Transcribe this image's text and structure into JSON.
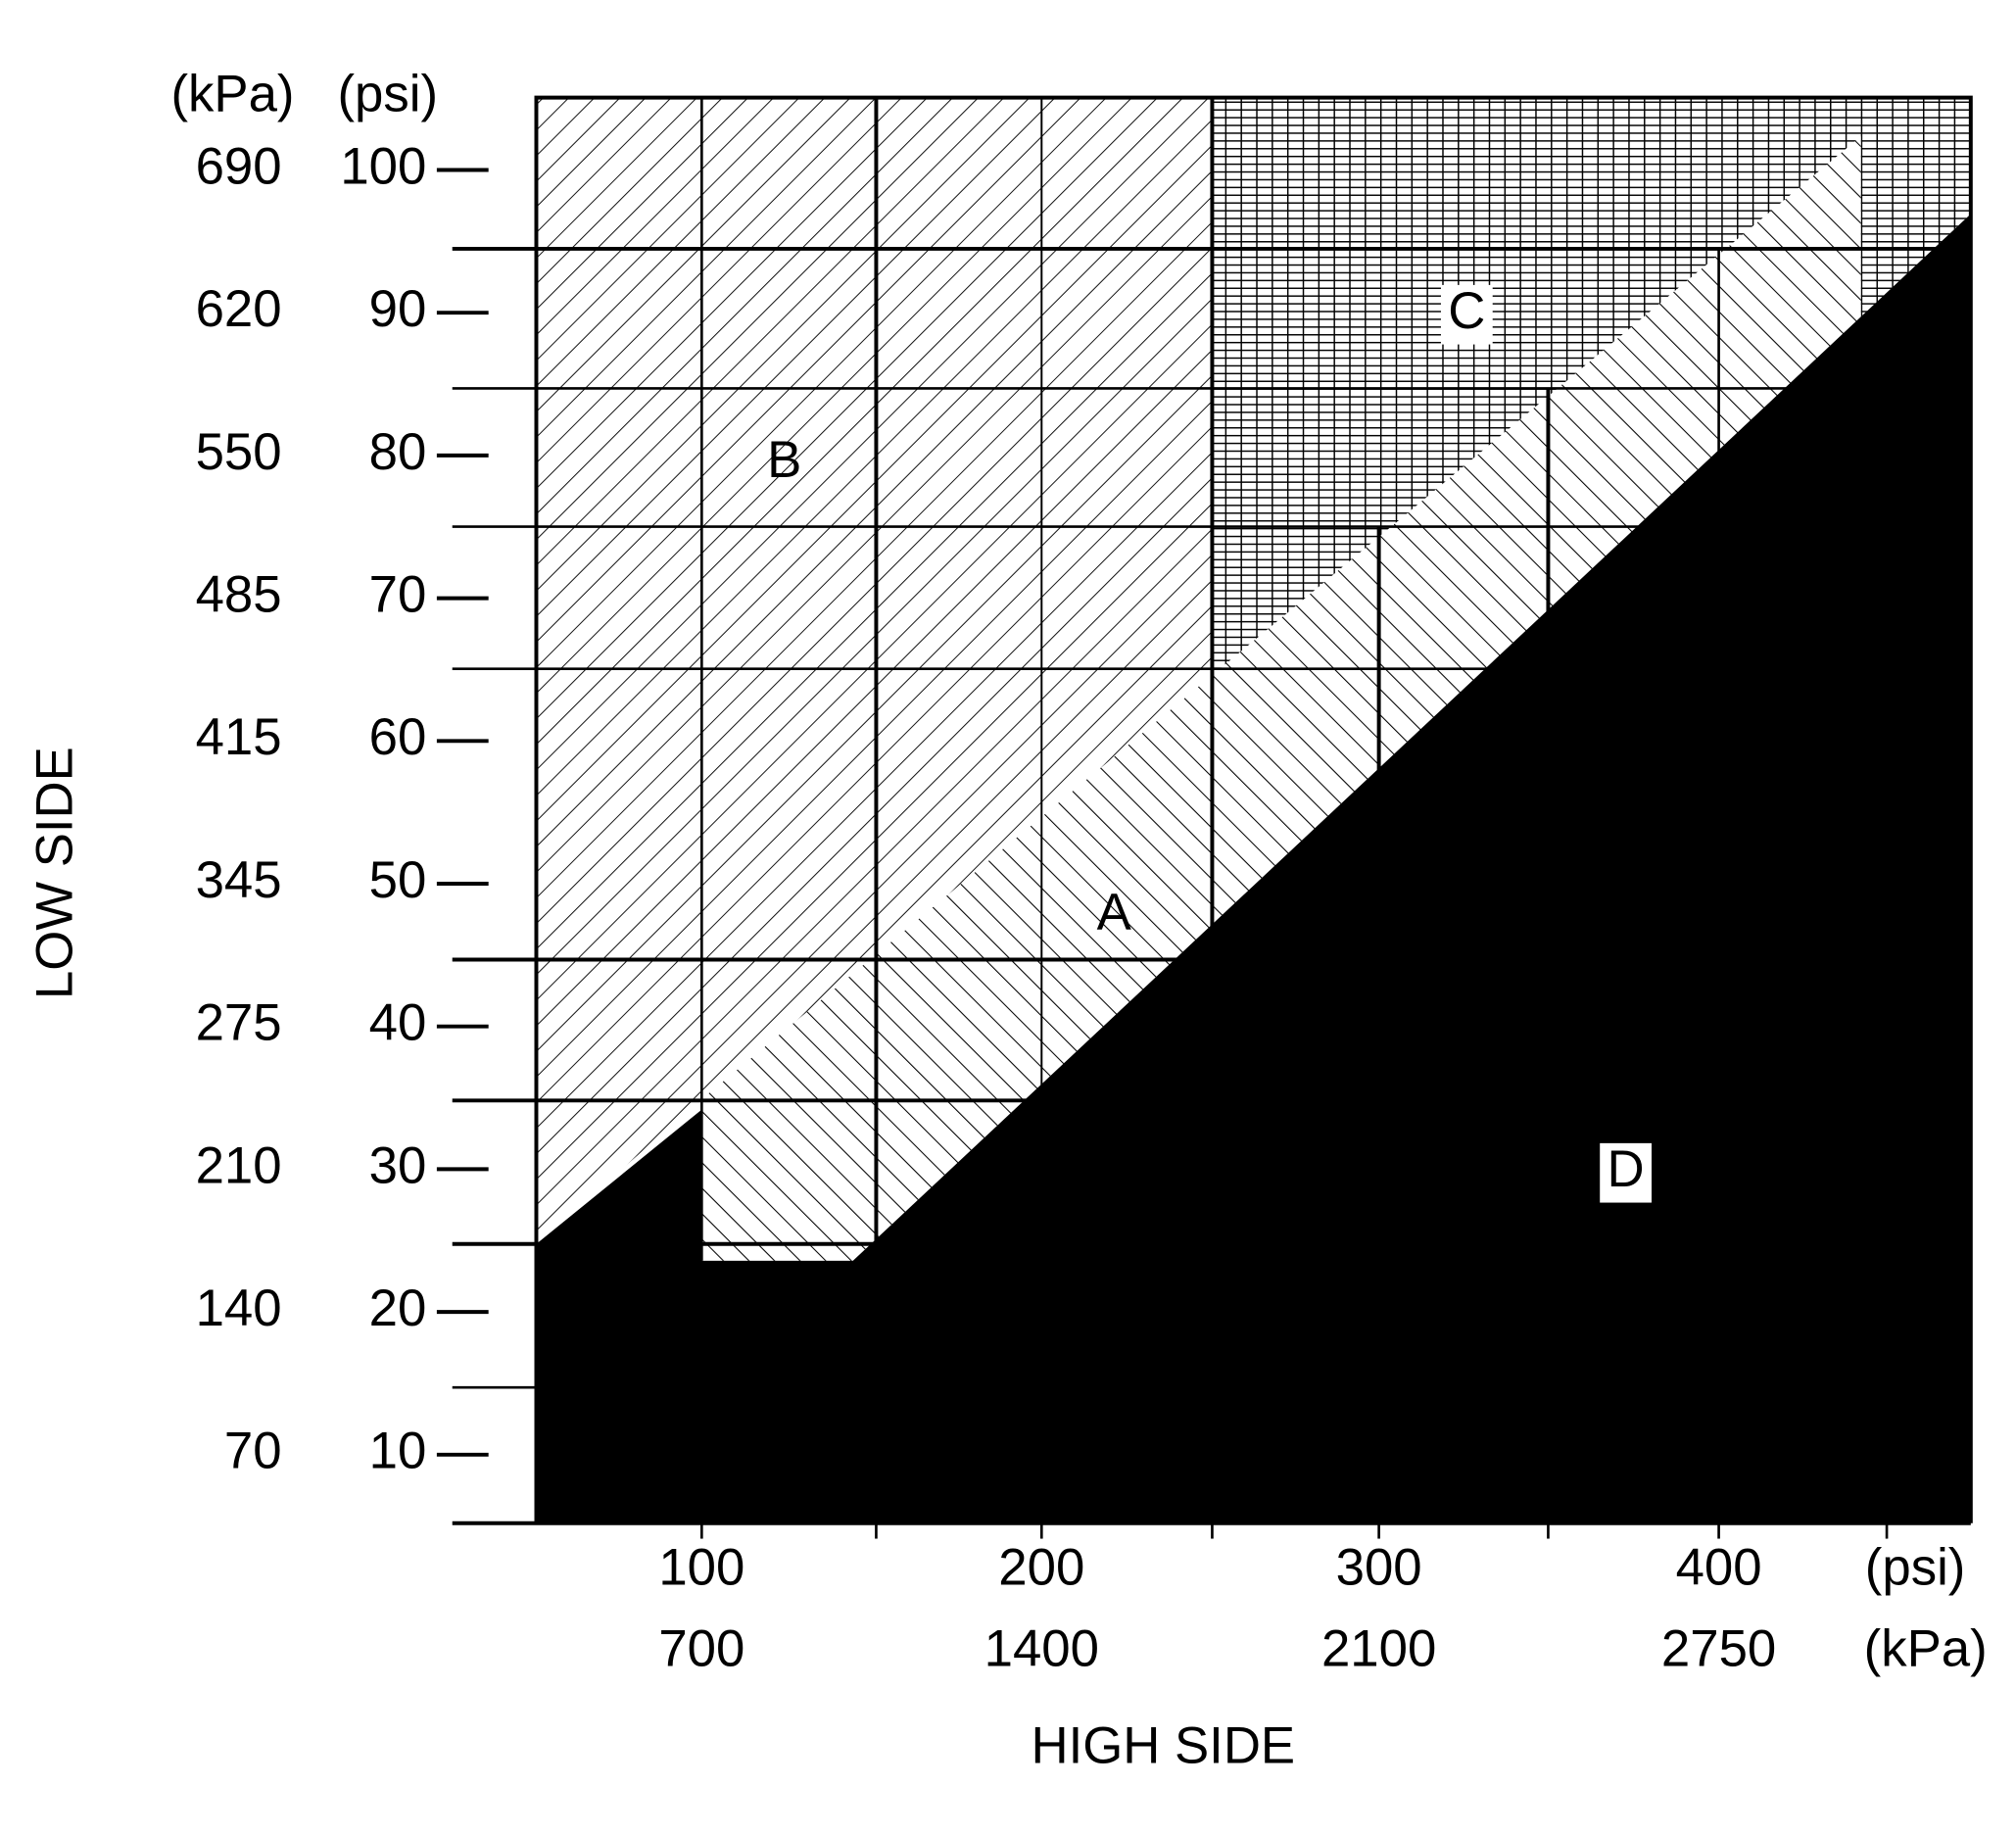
{
  "y_axis": {
    "title": "LOW SIDE",
    "units": [
      "(kPa)",
      "(psi)"
    ],
    "kpa_labels": [
      "690",
      "620",
      "550",
      "485",
      "415",
      "345",
      "275",
      "210",
      "140",
      "70"
    ],
    "psi_labels": [
      "100",
      "90",
      "80",
      "70",
      "60",
      "50",
      "40",
      "30",
      "20",
      "10"
    ]
  },
  "x_axis": {
    "title": "HIGH SIDE",
    "units": [
      "(psi)",
      "(kPa)"
    ],
    "psi_labels": [
      "100",
      "200",
      "300",
      "400"
    ],
    "kpa_labels": [
      "700",
      "1400",
      "2100",
      "2750"
    ]
  },
  "regions": [
    "A",
    "B",
    "C",
    "D"
  ]
}
